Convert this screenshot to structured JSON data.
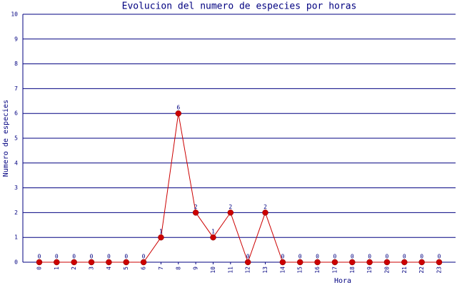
{
  "chart_data": {
    "type": "line",
    "title": "Evolucion del numero de especies por horas",
    "x_label": "Hora",
    "y_label": "Numero de especies",
    "categories": [
      "0",
      "1",
      "2",
      "3",
      "4",
      "5",
      "6",
      "7",
      "8",
      "9",
      "10",
      "11",
      "12",
      "13",
      "14",
      "15",
      "16",
      "17",
      "18",
      "19",
      "20",
      "21",
      "22",
      "23"
    ],
    "series": [
      {
        "name": "especies",
        "color": "#cc0000",
        "values": [
          0,
          0,
          0,
          0,
          0,
          0,
          0,
          1,
          6,
          2,
          1,
          2,
          0,
          2,
          0,
          0,
          0,
          0,
          0,
          0,
          0,
          0,
          0,
          0
        ]
      }
    ],
    "ylim": [
      0,
      10
    ],
    "yticks": [
      0,
      1,
      2,
      3,
      4,
      5,
      6,
      7,
      8,
      9,
      10
    ],
    "grid": true
  }
}
